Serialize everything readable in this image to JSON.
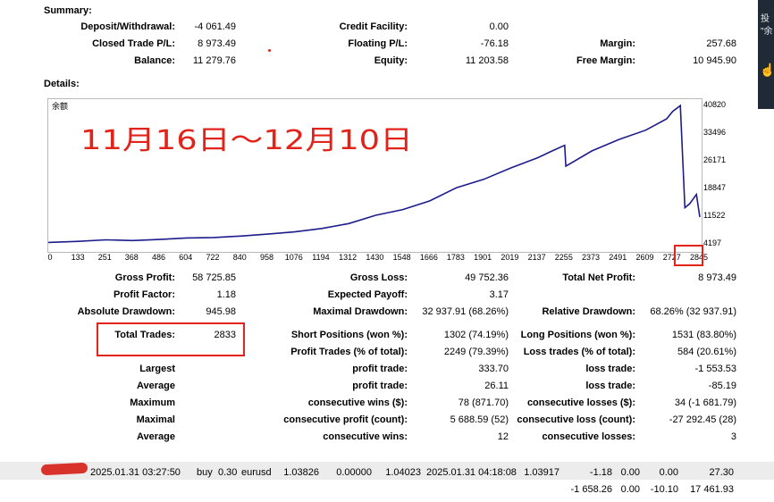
{
  "summary": {
    "title": "Summary:",
    "deposit_label": "Deposit/Withdrawal:",
    "deposit_value": "-4 061.49",
    "closed_pl_label": "Closed Trade P/L:",
    "closed_pl_value": "8 973.49",
    "balance_label": "Balance:",
    "balance_value": "11 279.76",
    "credit_label": "Credit Facility:",
    "credit_value": "0.00",
    "floating_label": "Floating P/L:",
    "floating_value": "-76.18",
    "equity_label": "Equity:",
    "equity_value": "11 203.58",
    "margin_label": "Margin:",
    "margin_value": "257.68",
    "free_margin_label": "Free Margin:",
    "free_margin_value": "10 945.90"
  },
  "details": {
    "title": "Details:"
  },
  "chart": {
    "legend": "余额",
    "annotation": "11月16日〜12月10日",
    "line_color": "#1c1c8c",
    "highlight_color": "#e2231a"
  },
  "chart_data": {
    "type": "line",
    "title": "",
    "series": [
      {
        "name": "余额",
        "x": [
          0,
          133,
          251,
          368,
          486,
          604,
          722,
          840,
          958,
          1076,
          1194,
          1312,
          1430,
          1548,
          1666,
          1783,
          1901,
          2019,
          2137,
          2200,
          2255,
          2260,
          2373,
          2491,
          2609,
          2700,
          2727,
          2760,
          2780,
          2800,
          2830,
          2845
        ],
        "y": [
          4800,
          5100,
          5500,
          5300,
          5600,
          6000,
          6100,
          6500,
          7000,
          7600,
          8500,
          9800,
          12000,
          13500,
          15800,
          19300,
          21500,
          24500,
          27200,
          29000,
          30500,
          25000,
          29000,
          32000,
          34500,
          37500,
          39500,
          41000,
          14000,
          15000,
          17500,
          11522
        ]
      }
    ],
    "x_ticks": [
      "0",
      "133",
      "251",
      "368",
      "486",
      "604",
      "722",
      "840",
      "958",
      "1076",
      "1194",
      "1312",
      "1430",
      "1548",
      "1666",
      "1783",
      "1901",
      "2019",
      "2137",
      "2255",
      "2373",
      "2491",
      "2609",
      "2727",
      "2845"
    ],
    "y_ticks": [
      "40820",
      "33496",
      "26171",
      "18847",
      "11522",
      "4197"
    ],
    "ylim": [
      4197,
      40820
    ],
    "xlim": [
      0,
      2845
    ],
    "grid": false
  },
  "stats": {
    "gross_profit_label": "Gross Profit:",
    "gross_profit_value": "58 725.85",
    "gross_loss_label": "Gross Loss:",
    "gross_loss_value": "49 752.36",
    "net_profit_label": "Total Net Profit:",
    "net_profit_value": "8 973.49",
    "profit_factor_label": "Profit Factor:",
    "profit_factor_value": "1.18",
    "expected_payoff_label": "Expected Payoff:",
    "expected_payoff_value": "3.17",
    "abs_dd_label": "Absolute Drawdown:",
    "abs_dd_value": "945.98",
    "max_dd_label": "Maximal Drawdown:",
    "max_dd_value": "32 937.91 (68.26%)",
    "rel_dd_label": "Relative Drawdown:",
    "rel_dd_value": "68.26% (32 937.91)",
    "total_trades_label": "Total Trades:",
    "total_trades_value": "2833",
    "short_label": "Short Positions (won %):",
    "short_value": "1302 (74.19%)",
    "long_label": "Long Positions (won %):",
    "long_value": "1531 (83.80%)",
    "profit_trades_label": "Profit Trades (% of total):",
    "profit_trades_value": "2249 (79.39%)",
    "loss_trades_label": "Loss trades (% of total):",
    "loss_trades_value": "584 (20.61%)",
    "largest_label": "Largest",
    "largest_profit_label": "profit trade:",
    "largest_profit_value": "333.70",
    "largest_loss_label": "loss trade:",
    "largest_loss_value": "-1 553.53",
    "average_label": "Average",
    "average_profit_label": "profit trade:",
    "average_profit_value": "26.11",
    "average_loss_label": "loss trade:",
    "average_loss_value": "-85.19",
    "maximum_label": "Maximum",
    "max_wins_label": "consecutive wins ($):",
    "max_wins_value": "78 (871.70)",
    "max_losses_label": "consecutive losses ($):",
    "max_losses_value": "34 (-1 681.79)",
    "maximal_label": "Maximal",
    "maximal_profit_label": "consecutive profit (count):",
    "maximal_profit_value": "5 688.59 (52)",
    "maximal_loss_label": "consecutive loss (count):",
    "maximal_loss_value": "-27 292.45 (28)",
    "avg2_label": "Average",
    "avg_wins_label": "consecutive wins:",
    "avg_wins_value": "12",
    "avg_losses_label": "consecutive losses:",
    "avg_losses_value": "3"
  },
  "trade_row": {
    "open_time": "2025.01.31 03:27:50",
    "type": "buy",
    "size": "0.30",
    "symbol": "eurusd",
    "open_price": "1.03826",
    "sl": "0.00000",
    "tp": "1.04023",
    "close_time": "2025.01.31 04:18:08",
    "close_price": "1.03917",
    "commission": "-1.18",
    "taxes": "0.00",
    "swap": "0.00",
    "profit": "27.30"
  },
  "totals_row": {
    "commission": "-1 658.26",
    "taxes": "0.00",
    "swap": "-10.10",
    "profit": "17 461.93"
  },
  "side_panel": {
    "text1": "投",
    "text2": "\"余"
  }
}
